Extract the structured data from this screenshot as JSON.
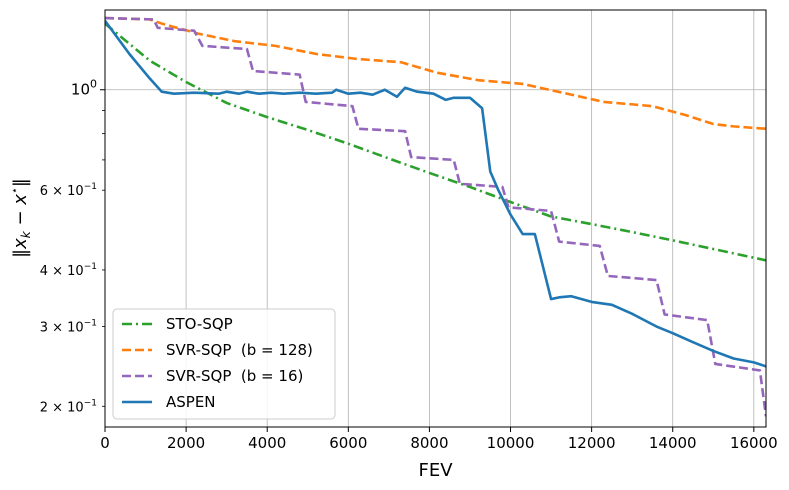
{
  "chart_data": {
    "type": "line",
    "title": "",
    "xlabel": "FEV",
    "ylabel": "‖x_k − x*‖",
    "ylabel_parts": {
      "left": "‖",
      "x": "x",
      "sub": "k",
      "minus": " − ",
      "x2": "x",
      "sup": "⋆",
      "right": "‖"
    },
    "xlim": [
      0,
      16300
    ],
    "ylim": [
      0.18,
      1.5
    ],
    "yscale": "log",
    "grid": true,
    "legend_position": "lower-left",
    "xticks": [
      0,
      2000,
      4000,
      6000,
      8000,
      10000,
      12000,
      14000,
      16000
    ],
    "xtick_labels": [
      "0",
      "2000",
      "4000",
      "6000",
      "8000",
      "10000",
      "12000",
      "14000",
      "16000"
    ],
    "yticks_major": [
      1.0
    ],
    "ytick_major_labels": [
      {
        "base": "10",
        "exp": "0"
      }
    ],
    "yticks_minor": [
      0.2,
      0.3,
      0.4,
      0.6
    ],
    "ytick_minor_labels": [
      {
        "mant": "2",
        "times": "×",
        "base": "10",
        "exp": "−1"
      },
      {
        "mant": "3",
        "times": "×",
        "base": "10",
        "exp": "−1"
      },
      {
        "mant": "4",
        "times": "×",
        "base": "10",
        "exp": "−1"
      },
      {
        "mant": "6",
        "times": "×",
        "base": "10",
        "exp": "−1"
      }
    ],
    "yticks_minor_unlabeled": [
      0.7,
      0.8,
      0.9
    ],
    "series": [
      {
        "name": "STO-SQP",
        "color": "#2ca02c",
        "dash": "dashdot",
        "x": [
          0,
          1100,
          2000,
          3000,
          4000,
          5000,
          6000,
          7000,
          8000,
          9000,
          10000,
          11000,
          12000,
          13000,
          14000,
          15000,
          16300
        ],
        "y": [
          1.4,
          1.16,
          1.04,
          0.935,
          0.87,
          0.815,
          0.76,
          0.705,
          0.655,
          0.61,
          0.565,
          0.525,
          0.505,
          0.485,
          0.465,
          0.445,
          0.42
        ]
      },
      {
        "name": "SVR-SQP  (b = 128)",
        "color": "#ff7f0e",
        "dash": "dashed",
        "x": [
          0,
          1100,
          1400,
          2300,
          3200,
          4200,
          5200,
          6200,
          7300,
          8200,
          9200,
          10300,
          11400,
          12300,
          13500,
          14300,
          15000,
          15500,
          16300
        ],
        "y": [
          1.44,
          1.43,
          1.4,
          1.33,
          1.28,
          1.25,
          1.2,
          1.17,
          1.15,
          1.09,
          1.05,
          1.03,
          0.98,
          0.94,
          0.92,
          0.88,
          0.84,
          0.83,
          0.82
        ]
      },
      {
        "name": "SVR-SQP  (b = 16)",
        "color": "#9467bd",
        "dash": "dashed",
        "x": [
          0,
          1200,
          1300,
          2200,
          2400,
          3500,
          3650,
          4800,
          4950,
          6100,
          6250,
          7400,
          7550,
          8600,
          8750,
          9800,
          9950,
          11000,
          11200,
          12200,
          12400,
          13600,
          13800,
          14850,
          15050,
          16150,
          16300
        ],
        "y": [
          1.44,
          1.43,
          1.37,
          1.35,
          1.25,
          1.23,
          1.1,
          1.08,
          0.94,
          0.92,
          0.82,
          0.81,
          0.71,
          0.7,
          0.62,
          0.61,
          0.55,
          0.54,
          0.462,
          0.452,
          0.388,
          0.38,
          0.319,
          0.31,
          0.248,
          0.24,
          0.19
        ]
      },
      {
        "name": "ASPEN",
        "color": "#1f77b4",
        "dash": "solid",
        "x": [
          0,
          600,
          1100,
          1400,
          1700,
          2200,
          2800,
          3000,
          3300,
          3500,
          3800,
          4100,
          4400,
          4800,
          5200,
          5600,
          5700,
          6000,
          6300,
          6600,
          6900,
          7200,
          7400,
          7700,
          8100,
          8400,
          8600,
          9000,
          9300,
          9500,
          9700,
          10000,
          10300,
          10600,
          11000,
          11200,
          11500,
          12000,
          12500,
          13000,
          13600,
          14000,
          14500,
          15000,
          15500,
          16000,
          16300
        ],
        "y": [
          1.42,
          1.2,
          1.06,
          0.99,
          0.98,
          0.985,
          0.98,
          0.99,
          0.98,
          0.99,
          0.98,
          0.985,
          0.98,
          0.985,
          0.98,
          0.985,
          1.0,
          0.98,
          0.985,
          0.975,
          1.0,
          0.965,
          1.01,
          0.99,
          0.98,
          0.95,
          0.96,
          0.96,
          0.91,
          0.66,
          0.6,
          0.53,
          0.48,
          0.48,
          0.345,
          0.348,
          0.35,
          0.34,
          0.335,
          0.32,
          0.3,
          0.29,
          0.277,
          0.265,
          0.255,
          0.25,
          0.245
        ]
      }
    ]
  }
}
